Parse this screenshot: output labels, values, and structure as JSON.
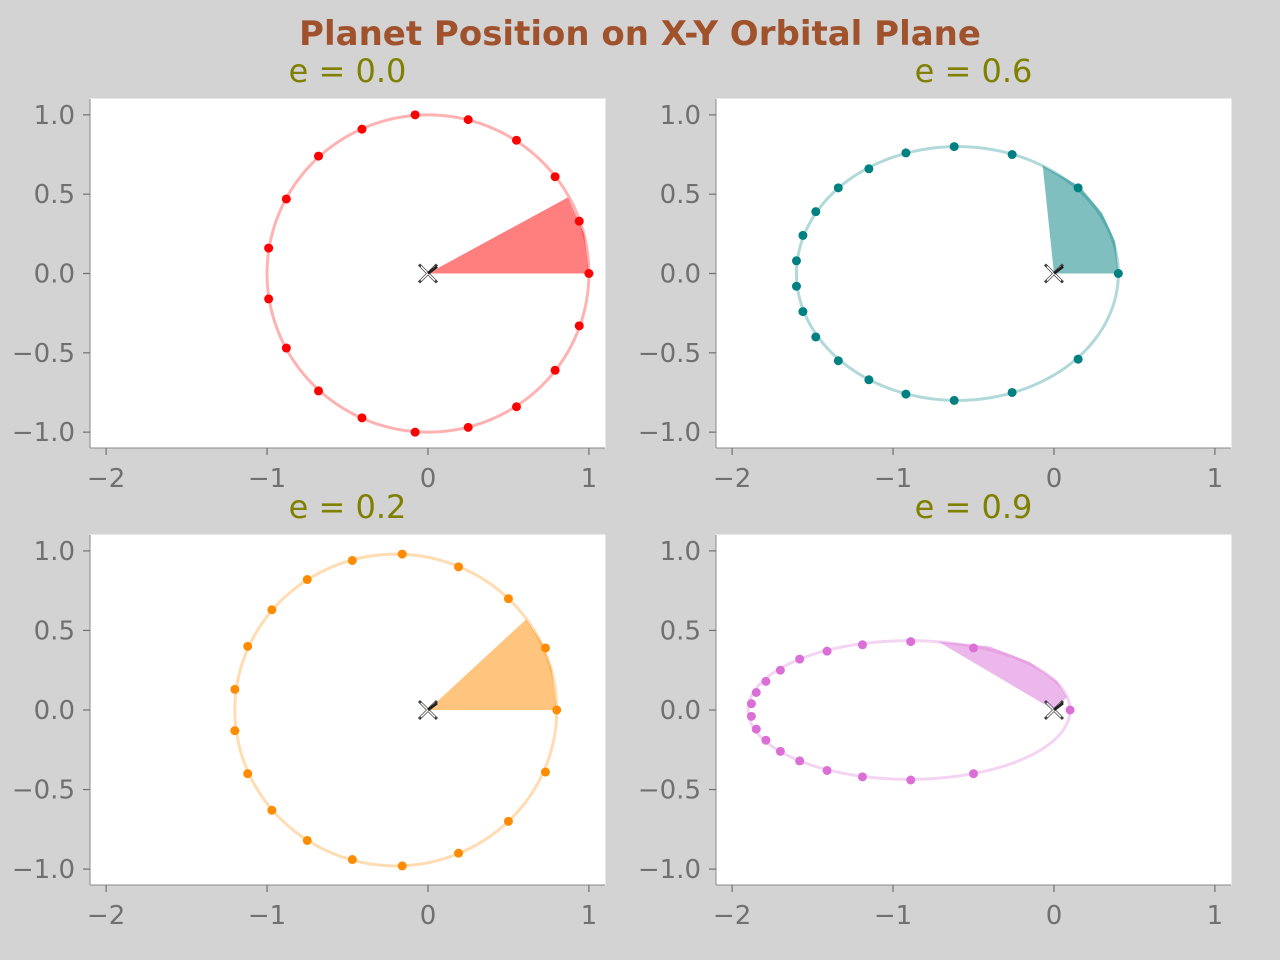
{
  "figure": {
    "title": "Planet Position on X-Y Orbital Plane",
    "title_color": "#a0522d",
    "subtitle_color": "#808000",
    "tick_color": "#707070",
    "background": "#d3d3d3"
  },
  "chart_data": [
    {
      "type": "scatter",
      "title": "e = 0.0",
      "eccentricity": 0.0,
      "color": "#ff0000",
      "xlim": [
        -2.1,
        1.1
      ],
      "ylim": [
        -1.1,
        1.1
      ],
      "xticks": [
        -2,
        -1,
        0,
        1
      ],
      "yticks": [
        -1.0,
        -0.5,
        0.0,
        0.5,
        1.0
      ],
      "xtick_labels": [
        "−2",
        "−1",
        "0",
        "1"
      ],
      "ytick_labels": [
        "−1.0",
        "−0.5",
        "0.0",
        "0.5",
        "1.0"
      ],
      "grid": false,
      "focus": [
        0,
        0
      ],
      "wedge_polygon": [
        [
          0,
          0
        ],
        [
          1.0,
          0.0
        ],
        [
          0.97,
          0.25
        ],
        [
          0.87,
          0.48
        ]
      ],
      "points": [
        [
          1.0,
          0.0
        ],
        [
          0.94,
          0.33
        ],
        [
          0.79,
          0.61
        ],
        [
          0.55,
          0.84
        ],
        [
          0.25,
          0.97
        ],
        [
          -0.08,
          1.0
        ],
        [
          -0.41,
          0.91
        ],
        [
          -0.68,
          0.74
        ],
        [
          -0.88,
          0.47
        ],
        [
          -0.99,
          0.16
        ],
        [
          -0.99,
          -0.16
        ],
        [
          -0.88,
          -0.47
        ],
        [
          -0.68,
          -0.74
        ],
        [
          -0.41,
          -0.91
        ],
        [
          -0.08,
          -1.0
        ],
        [
          0.25,
          -0.97
        ],
        [
          0.55,
          -0.84
        ],
        [
          0.79,
          -0.61
        ],
        [
          0.94,
          -0.33
        ]
      ]
    },
    {
      "type": "scatter",
      "title": "e = 0.6",
      "eccentricity": 0.6,
      "color": "#008080",
      "xlim": [
        -2.1,
        1.1
      ],
      "ylim": [
        -1.1,
        1.1
      ],
      "xticks": [
        -2,
        -1,
        0,
        1
      ],
      "yticks": [
        -1.0,
        -0.5,
        0.0,
        0.5,
        1.0
      ],
      "xtick_labels": [
        "−2",
        "−1",
        "0",
        "1"
      ],
      "ytick_labels": [
        "−1.0",
        "−0.5",
        "0.0",
        "0.5",
        "1.0"
      ],
      "grid": false,
      "focus": [
        0,
        0
      ],
      "wedge_polygon": [
        [
          0,
          0
        ],
        [
          0.4,
          0.0
        ],
        [
          0.38,
          0.2
        ],
        [
          0.3,
          0.38
        ],
        [
          0.16,
          0.55
        ],
        [
          -0.07,
          0.68
        ]
      ],
      "points": [
        [
          0.4,
          0.0
        ],
        [
          0.15,
          0.54
        ],
        [
          -0.26,
          0.75
        ],
        [
          -0.62,
          0.8
        ],
        [
          -0.92,
          0.76
        ],
        [
          -1.15,
          0.66
        ],
        [
          -1.34,
          0.54
        ],
        [
          -1.48,
          0.39
        ],
        [
          -1.56,
          0.24
        ],
        [
          -1.6,
          0.08
        ],
        [
          -1.6,
          -0.08
        ],
        [
          -1.56,
          -0.24
        ],
        [
          -1.48,
          -0.4
        ],
        [
          -1.34,
          -0.55
        ],
        [
          -1.15,
          -0.67
        ],
        [
          -0.92,
          -0.76
        ],
        [
          -0.62,
          -0.8
        ],
        [
          -0.26,
          -0.75
        ],
        [
          0.15,
          -0.54
        ]
      ]
    },
    {
      "type": "scatter",
      "title": "e = 0.2",
      "eccentricity": 0.2,
      "color": "#ff8c00",
      "xlim": [
        -2.1,
        1.1
      ],
      "ylim": [
        -1.1,
        1.1
      ],
      "xticks": [
        -2,
        -1,
        0,
        1
      ],
      "yticks": [
        -1.0,
        -0.5,
        0.0,
        0.5,
        1.0
      ],
      "xtick_labels": [
        "−2",
        "−1",
        "0",
        "1"
      ],
      "ytick_labels": [
        "−1.0",
        "−0.5",
        "0.0",
        "0.5",
        "1.0"
      ],
      "grid": false,
      "focus": [
        0,
        0
      ],
      "wedge_polygon": [
        [
          0,
          0
        ],
        [
          0.8,
          0.0
        ],
        [
          0.77,
          0.25
        ],
        [
          0.71,
          0.42
        ],
        [
          0.61,
          0.57
        ]
      ],
      "points": [
        [
          0.8,
          0.0
        ],
        [
          0.73,
          0.39
        ],
        [
          0.5,
          0.7
        ],
        [
          0.19,
          0.9
        ],
        [
          -0.16,
          0.98
        ],
        [
          -0.47,
          0.94
        ],
        [
          -0.75,
          0.82
        ],
        [
          -0.97,
          0.63
        ],
        [
          -1.12,
          0.4
        ],
        [
          -1.2,
          0.13
        ],
        [
          -1.2,
          -0.13
        ],
        [
          -1.12,
          -0.4
        ],
        [
          -0.97,
          -0.63
        ],
        [
          -0.75,
          -0.82
        ],
        [
          -0.47,
          -0.94
        ],
        [
          -0.16,
          -0.98
        ],
        [
          0.19,
          -0.9
        ],
        [
          0.5,
          -0.7
        ],
        [
          0.73,
          -0.39
        ]
      ]
    },
    {
      "type": "scatter",
      "title": "e = 0.9",
      "eccentricity": 0.9,
      "color": "#da70d6",
      "xlim": [
        -2.1,
        1.1
      ],
      "ylim": [
        -1.1,
        1.1
      ],
      "xticks": [
        -2,
        -1,
        0,
        1
      ],
      "yticks": [
        -1.0,
        -0.5,
        0.0,
        0.5,
        1.0
      ],
      "xtick_labels": [
        "−2",
        "−1",
        "0",
        "1"
      ],
      "ytick_labels": [
        "−1.0",
        "−0.5",
        "0.0",
        "0.5",
        "1.0"
      ],
      "grid": false,
      "focus": [
        0,
        0
      ],
      "wedge_polygon": [
        [
          0,
          0
        ],
        [
          0.08,
          0.08
        ],
        [
          0.02,
          0.18
        ],
        [
          -0.15,
          0.3
        ],
        [
          -0.4,
          0.4
        ],
        [
          -0.72,
          0.43
        ]
      ],
      "points": [
        [
          0.1,
          0.0
        ],
        [
          -0.5,
          0.39
        ],
        [
          -0.89,
          0.43
        ],
        [
          -1.19,
          0.41
        ],
        [
          -1.41,
          0.37
        ],
        [
          -1.58,
          0.32
        ],
        [
          -1.7,
          0.25
        ],
        [
          -1.79,
          0.18
        ],
        [
          -1.85,
          0.11
        ],
        [
          -1.88,
          0.04
        ],
        [
          -1.88,
          -0.04
        ],
        [
          -1.85,
          -0.12
        ],
        [
          -1.79,
          -0.19
        ],
        [
          -1.7,
          -0.26
        ],
        [
          -1.58,
          -0.32
        ],
        [
          -1.41,
          -0.38
        ],
        [
          -1.19,
          -0.42
        ],
        [
          -0.89,
          -0.44
        ],
        [
          -0.5,
          -0.4
        ]
      ]
    }
  ]
}
